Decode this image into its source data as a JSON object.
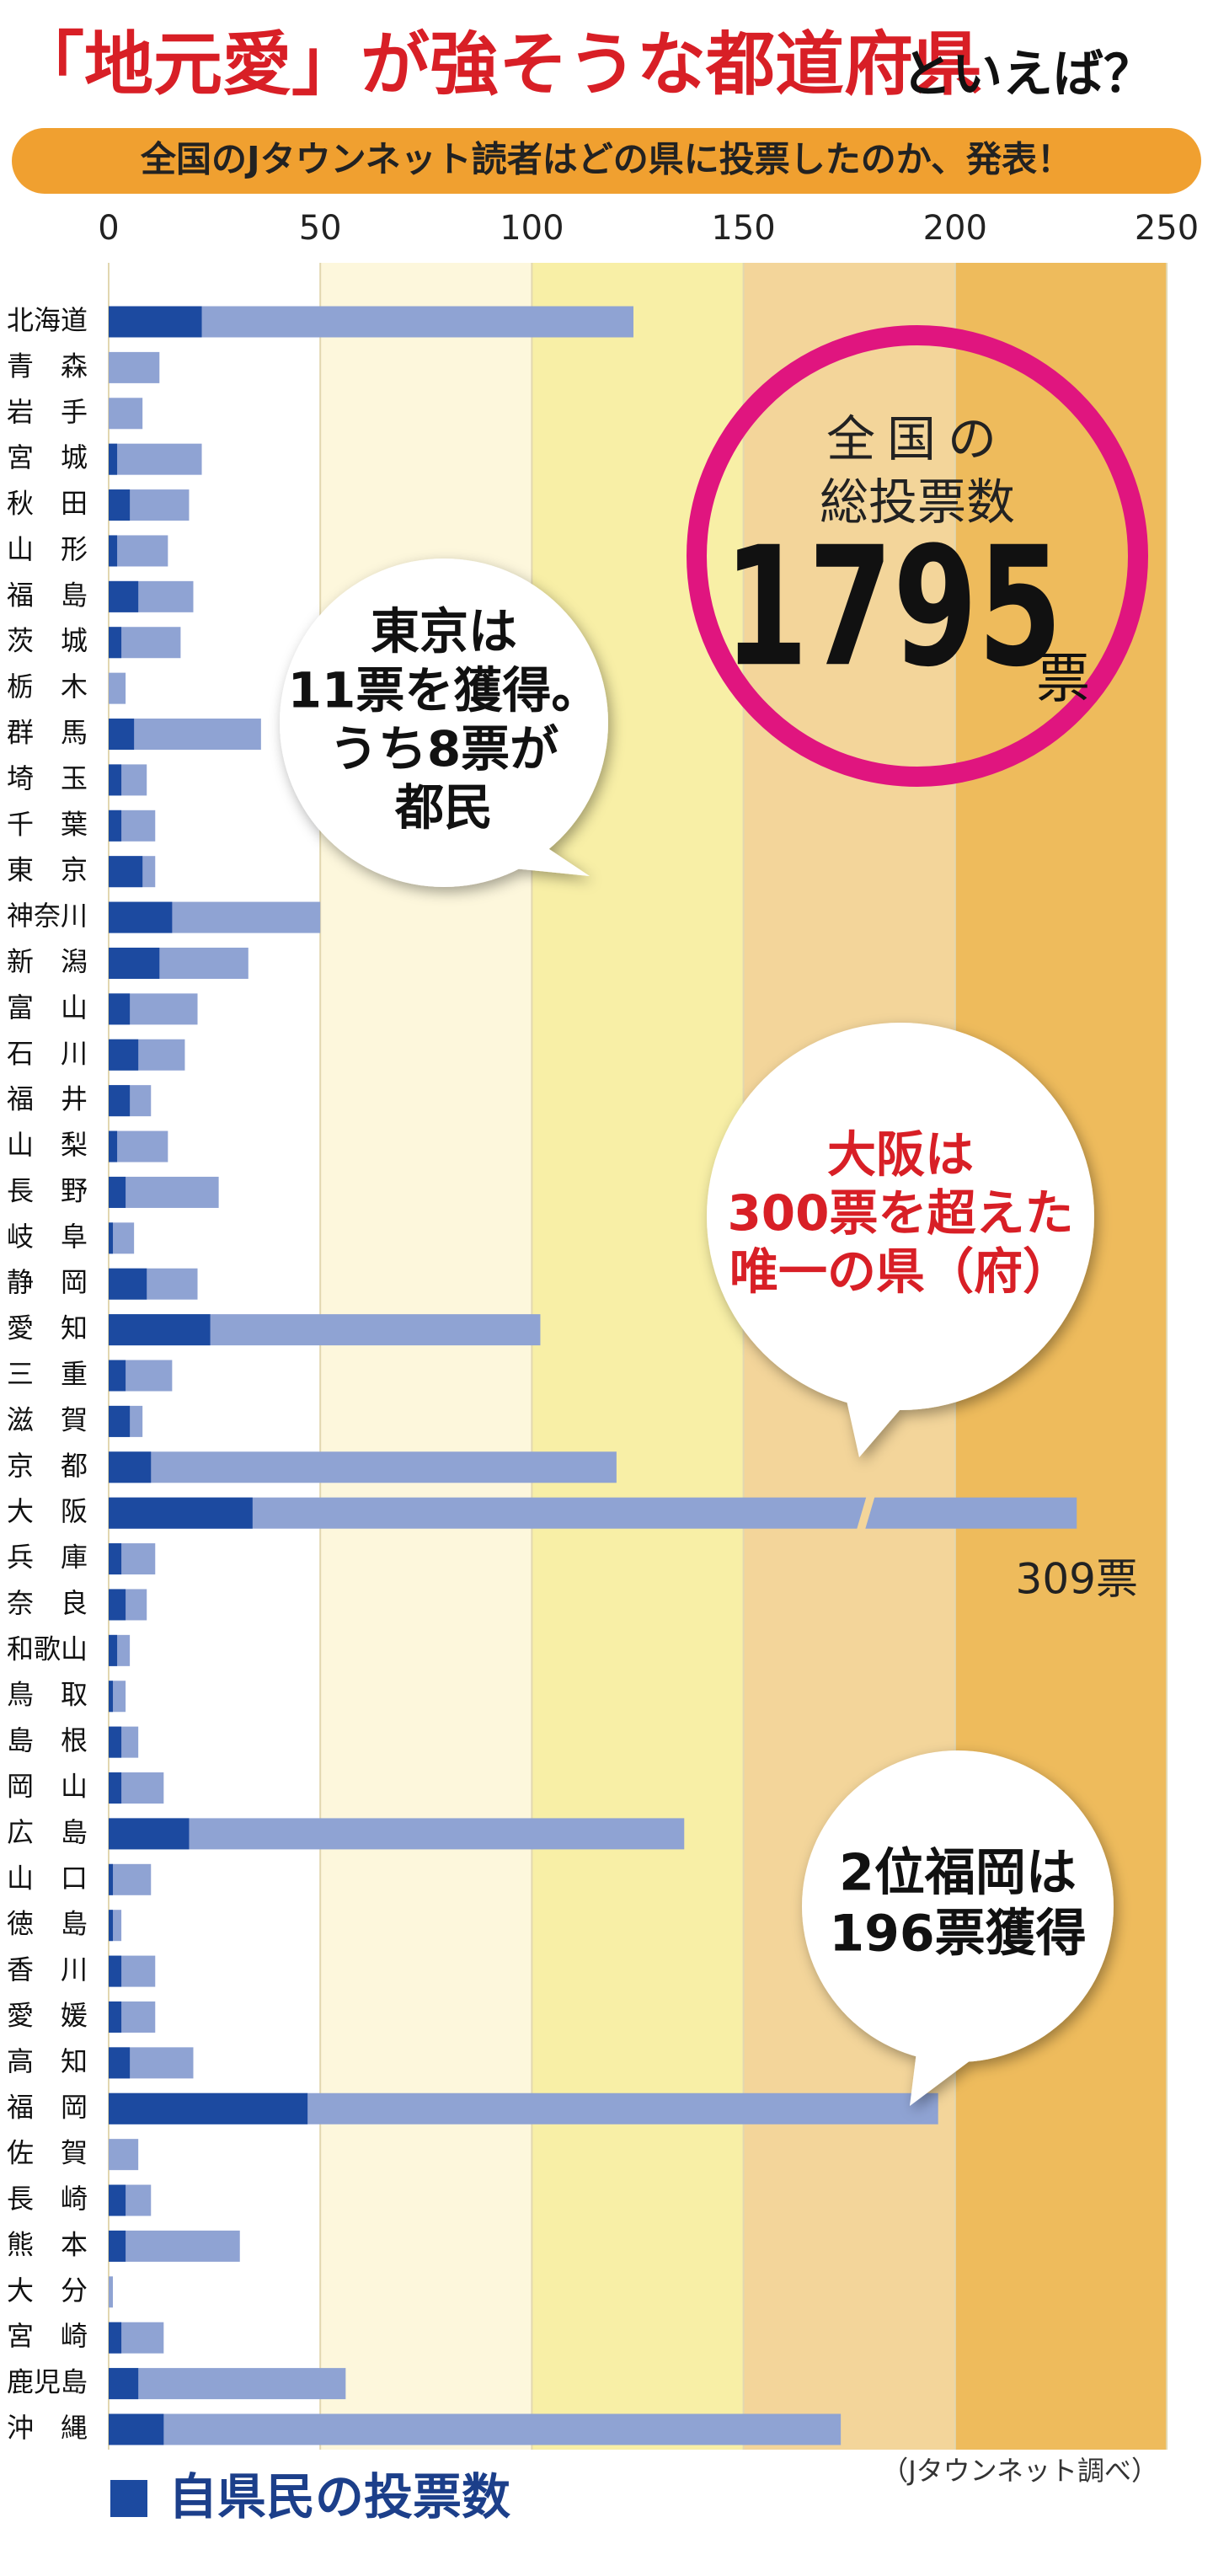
{
  "chart_data": {
    "type": "bar",
    "orientation": "horizontal",
    "title": "「地元愛」が強そうな都道府県",
    "title_suffix": "といえば？",
    "subtitle": "全国のJタウンネット読者はどの県に投票したのか、発表！",
    "categories": [
      "北海道",
      "青　森",
      "岩　手",
      "宮　城",
      "秋　田",
      "山　形",
      "福　島",
      "茨　城",
      "栃　木",
      "群　馬",
      "埼　玉",
      "千　葉",
      "東　京",
      "神奈川",
      "新　潟",
      "富　山",
      "石　川",
      "福　井",
      "山　梨",
      "長　野",
      "岐　阜",
      "静　岡",
      "愛　知",
      "三　重",
      "滋　賀",
      "京　都",
      "大　阪",
      "兵　庫",
      "奈　良",
      "和歌山",
      "鳥　取",
      "島　根",
      "岡　山",
      "広　島",
      "山　口",
      "徳　島",
      "香　川",
      "愛　媛",
      "高　知",
      "福　岡",
      "佐　賀",
      "長　崎",
      "熊　本",
      "大　分",
      "宮　崎",
      "鹿児島",
      "沖　縄"
    ],
    "series": [
      {
        "color": "#8fa3d3",
        "values": [
          124,
          12,
          8,
          22,
          19,
          14,
          20,
          17,
          4,
          36,
          9,
          11,
          11,
          50,
          33,
          21,
          18,
          10,
          14,
          26,
          6,
          21,
          102,
          15,
          8,
          120,
          309,
          11,
          9,
          5,
          4,
          7,
          13,
          136,
          10,
          3,
          11,
          11,
          20,
          196,
          7,
          10,
          31,
          1,
          13,
          56,
          173
        ],
        "value_labels": [
          null,
          null,
          null,
          null,
          null,
          null,
          null,
          null,
          null,
          null,
          null,
          null,
          null,
          null,
          null,
          null,
          null,
          null,
          null,
          null,
          null,
          null,
          null,
          null,
          null,
          null,
          "309票",
          null,
          null,
          null,
          null,
          null,
          null,
          null,
          null,
          null,
          null,
          null,
          null,
          null,
          null,
          null,
          null,
          null,
          null,
          null,
          null
        ]
      },
      {
        "name": "自県民の投票数",
        "color": "#1c4aa0",
        "values": [
          22,
          0,
          0,
          2,
          5,
          2,
          7,
          3,
          0,
          6,
          3,
          3,
          8,
          15,
          12,
          5,
          7,
          5,
          2,
          4,
          1,
          9,
          24,
          4,
          5,
          10,
          34,
          3,
          4,
          2,
          1,
          3,
          3,
          19,
          1,
          1,
          3,
          3,
          5,
          47,
          0,
          4,
          4,
          0,
          3,
          7,
          13
        ]
      }
    ],
    "overlap": true,
    "xlim": [
      0,
      250
    ],
    "xticks": [
      0,
      50,
      100,
      150,
      200,
      250
    ],
    "band_colors": [
      "#ffffff",
      "#fdf7dc",
      "#f8efa6",
      "#f3d59a",
      "#eebb5c"
    ],
    "axis_break": true,
    "circle": {
      "line1": "全国の",
      "line2": "総投票数",
      "number": "1795",
      "unit": "票"
    },
    "annotations": [
      {
        "lines": [
          "東京は",
          "11票を獲得。",
          "うち8票が",
          "都民"
        ]
      },
      {
        "lines": [
          "大阪は",
          "300票を超えた",
          "唯一の県（府）"
        ]
      },
      {
        "lines": [
          "2位福岡は",
          "196票獲得"
        ]
      }
    ],
    "source": "（Jタウンネット調べ）"
  }
}
